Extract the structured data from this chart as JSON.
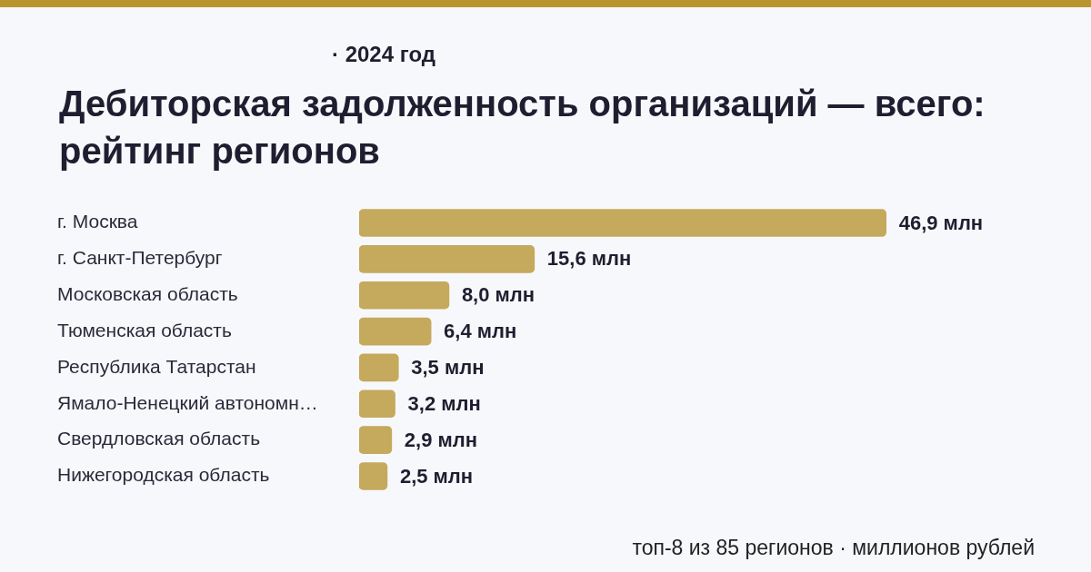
{
  "chart_data": {
    "type": "bar",
    "orientation": "horizontal",
    "subtitle": "· 2024 год",
    "title": "Дебиторская задолженность организаций — всего: рейтинг регионов",
    "categories": [
      "г. Москва",
      "г. Санкт-Петербург",
      "Московская область",
      "Тюменская область",
      "Республика Татарстан",
      "Ямало-Ненецкий автономн…",
      "Свердловская область",
      "Нижегородская область"
    ],
    "values": [
      46.9,
      15.6,
      8.0,
      6.4,
      3.5,
      3.2,
      2.9,
      2.5
    ],
    "value_labels": [
      "46,9 млн",
      "15,6 млн",
      "8,0 млн",
      "6,4 млн",
      "3,5 млн",
      "3,2 млн",
      "2,9 млн",
      "2,5 млн"
    ],
    "color": "#c5a95c",
    "annotations": [
      "топ-8 из 85 регионов · миллионов рублей"
    ]
  }
}
